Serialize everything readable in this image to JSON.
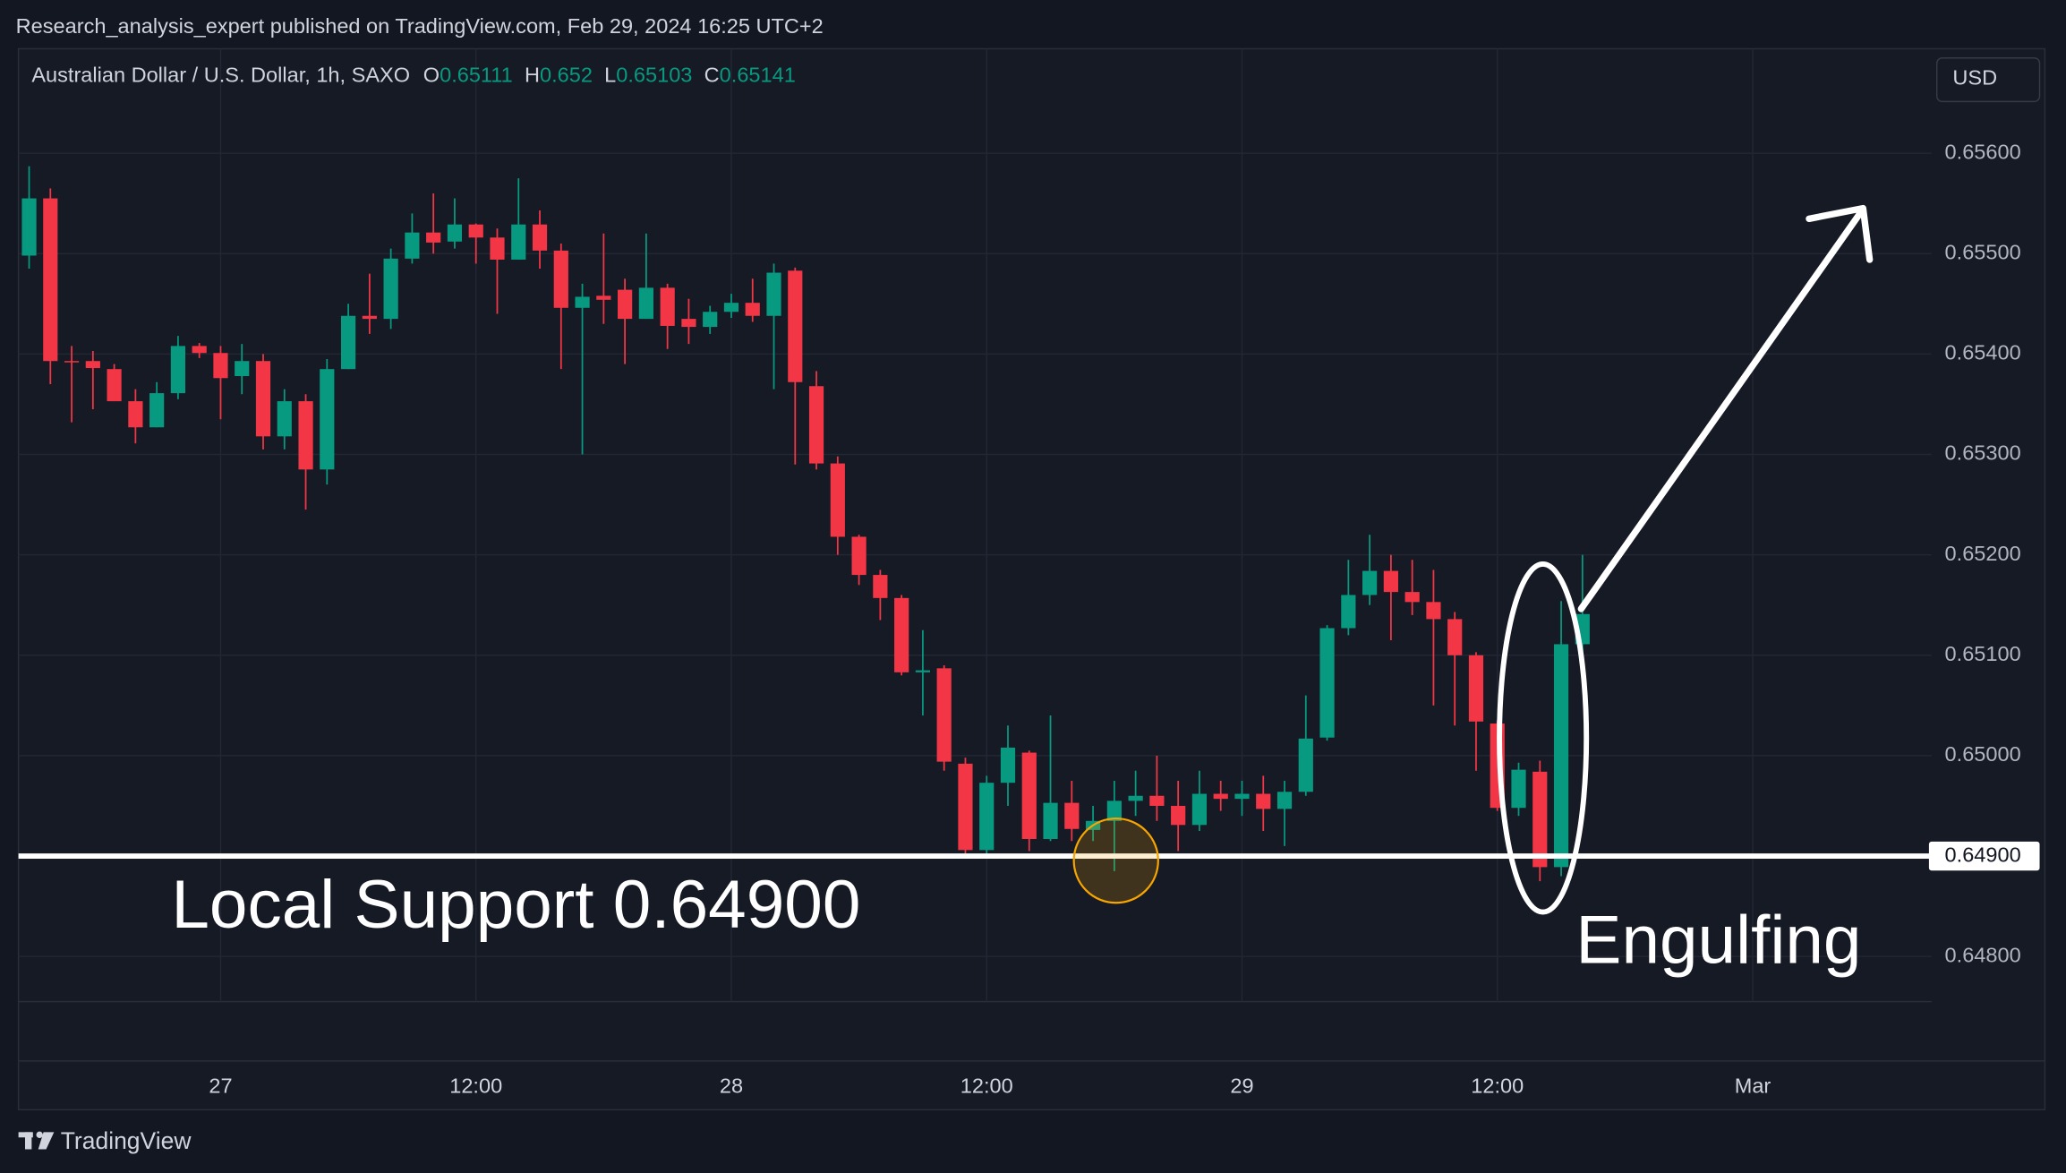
{
  "page": {
    "byline": "Research_analysis_expert published on TradingView.com, Feb 29, 2024 16:25 UTC+2",
    "currency": "USD",
    "footer": "TradingView"
  },
  "chart_data": {
    "type": "candlestick",
    "title": "Australian Dollar / U.S. Dollar, 1h, SAXO",
    "legend": [
      {
        "label": "O",
        "value": 0.65111
      },
      {
        "label": "H",
        "value": 0.652
      },
      {
        "label": "L",
        "value": 0.65103
      },
      {
        "label": "C",
        "value": 0.65141
      }
    ],
    "up_color": "#089981",
    "down_color": "#f23645",
    "grid": true,
    "categories": [
      null,
      null,
      null,
      null,
      null,
      null,
      null,
      null,
      null,
      "27",
      null,
      null,
      null,
      null,
      null,
      null,
      null,
      null,
      null,
      null,
      null,
      "12:00",
      null,
      null,
      null,
      null,
      null,
      null,
      null,
      null,
      null,
      null,
      null,
      "28",
      null,
      null,
      null,
      null,
      null,
      null,
      null,
      null,
      null,
      null,
      null,
      "12:00",
      null,
      null,
      null,
      null,
      null,
      null,
      null,
      null,
      null,
      null,
      null,
      "29",
      null,
      null,
      null,
      null,
      null,
      null,
      null,
      null,
      null,
      null,
      null,
      "12:00",
      null,
      null,
      null,
      null,
      null,
      null,
      null,
      null,
      null,
      null,
      null,
      "Mar"
    ],
    "open": [
      0.65498,
      0.65555,
      0.65393,
      0.65393,
      0.65385,
      0.65353,
      0.65327,
      0.65361,
      0.65408,
      0.65401,
      0.65378,
      0.65393,
      0.65318,
      0.65353,
      0.65285,
      0.65385,
      0.65438,
      0.65435,
      0.65495,
      0.65521,
      0.65512,
      0.65529,
      0.65516,
      0.65494,
      0.65529,
      0.65503,
      0.65446,
      0.65458,
      0.65464,
      0.65435,
      0.65466,
      0.65435,
      0.65427,
      0.65442,
      0.65451,
      0.65438,
      0.65483,
      0.65368,
      0.65291,
      0.65218,
      0.6518,
      0.65157,
      0.65083,
      0.65087,
      0.64992,
      0.64906,
      0.64973,
      0.65003,
      0.64917,
      0.64953,
      0.64926,
      0.64935,
      0.64955,
      0.6496,
      0.6495,
      0.64931,
      0.64962,
      0.64957,
      0.64962,
      0.64947,
      0.64964,
      0.65018,
      0.65127,
      0.6516,
      0.65184,
      0.65163,
      0.65153,
      0.65136,
      0.651,
      0.65032,
      0.64948,
      0.64984,
      0.64889,
      0.65111,
      null,
      null,
      null,
      null,
      null,
      null,
      null,
      null
    ],
    "high": [
      0.65587,
      0.65565,
      0.65408,
      0.65403,
      0.6539,
      0.65365,
      0.65372,
      0.65418,
      0.65411,
      0.65408,
      0.6541,
      0.654,
      0.65365,
      0.6536,
      0.65395,
      0.6545,
      0.6548,
      0.65505,
      0.6554,
      0.6556,
      0.65555,
      0.6553,
      0.65525,
      0.65575,
      0.65543,
      0.6551,
      0.6547,
      0.6552,
      0.65475,
      0.6552,
      0.6547,
      0.65455,
      0.65448,
      0.6546,
      0.65475,
      0.6549,
      0.65486,
      0.65383,
      0.65298,
      0.6522,
      0.65185,
      0.6516,
      0.65125,
      0.6509,
      0.64998,
      0.6498,
      0.6503,
      0.65005,
      0.6504,
      0.64975,
      0.6495,
      0.64975,
      0.64985,
      0.65,
      0.64975,
      0.64985,
      0.64975,
      0.64975,
      0.6498,
      0.64975,
      0.6506,
      0.6513,
      0.65195,
      0.6522,
      0.652,
      0.65195,
      0.65185,
      0.65143,
      0.65103,
      0.65035,
      0.64993,
      0.64995,
      0.65154,
      0.652,
      null,
      null,
      null,
      null,
      null,
      null,
      null,
      null
    ],
    "low": [
      0.65485,
      0.6537,
      0.65332,
      0.65345,
      0.65353,
      0.65311,
      0.65327,
      0.65355,
      0.65396,
      0.65335,
      0.6536,
      0.65305,
      0.65305,
      0.65245,
      0.6527,
      0.65385,
      0.6542,
      0.65425,
      0.6549,
      0.655,
      0.65505,
      0.6549,
      0.6544,
      0.65494,
      0.65485,
      0.65385,
      0.653,
      0.6543,
      0.6539,
      0.65435,
      0.65405,
      0.6541,
      0.6542,
      0.65436,
      0.65432,
      0.65365,
      0.6529,
      0.65285,
      0.652,
      0.6517,
      0.65135,
      0.6508,
      0.6504,
      0.64985,
      0.64902,
      0.64902,
      0.6495,
      0.64905,
      0.64915,
      0.64915,
      0.64915,
      0.64885,
      0.6494,
      0.64935,
      0.64905,
      0.64925,
      0.64945,
      0.6494,
      0.64925,
      0.6491,
      0.6496,
      0.65015,
      0.6512,
      0.6515,
      0.65115,
      0.6514,
      0.6505,
      0.6503,
      0.64985,
      0.64945,
      0.6494,
      0.64875,
      0.6488,
      0.65103,
      null,
      null,
      null,
      null,
      null,
      null,
      null,
      null
    ],
    "close": [
      0.65555,
      0.65393,
      0.65392,
      0.65386,
      0.65353,
      0.65327,
      0.65361,
      0.65408,
      0.65401,
      0.65376,
      0.65393,
      0.65318,
      0.65353,
      0.65285,
      0.65385,
      0.65438,
      0.65435,
      0.65495,
      0.65521,
      0.65511,
      0.65529,
      0.65516,
      0.65494,
      0.65529,
      0.65503,
      0.65446,
      0.65457,
      0.65454,
      0.65435,
      0.65466,
      0.65428,
      0.65427,
      0.65442,
      0.65451,
      0.65438,
      0.65481,
      0.65372,
      0.65291,
      0.65218,
      0.6518,
      0.65157,
      0.65083,
      0.65085,
      0.64994,
      0.64906,
      0.64973,
      0.65008,
      0.64917,
      0.64953,
      0.64927,
      0.64935,
      0.64955,
      0.6496,
      0.6495,
      0.64931,
      0.64962,
      0.64957,
      0.64962,
      0.64947,
      0.64964,
      0.65017,
      0.65127,
      0.6516,
      0.65184,
      0.65163,
      0.65153,
      0.65136,
      0.651,
      0.65034,
      0.64948,
      0.64986,
      0.64889,
      0.65111,
      0.65141,
      null,
      null,
      null,
      null,
      null,
      null,
      null,
      null
    ],
    "ylim": [
      0.64755,
      0.65704
    ],
    "yticks": [
      {
        "value": 0.648,
        "label": "0.64800"
      },
      {
        "value": 0.649,
        "label": "0.64900"
      },
      {
        "value": 0.65,
        "label": "0.65000"
      },
      {
        "value": 0.651,
        "label": "0.65100"
      },
      {
        "value": 0.652,
        "label": "0.65200"
      },
      {
        "value": 0.653,
        "label": "0.65300"
      },
      {
        "value": 0.654,
        "label": "0.65400"
      },
      {
        "value": 0.655,
        "label": "0.65500"
      },
      {
        "value": 0.656,
        "label": "0.65600"
      }
    ],
    "support": {
      "value": 0.649,
      "label": "0.64900"
    },
    "annotations": [
      "Local Support 0.64900",
      "Engulfing"
    ]
  }
}
